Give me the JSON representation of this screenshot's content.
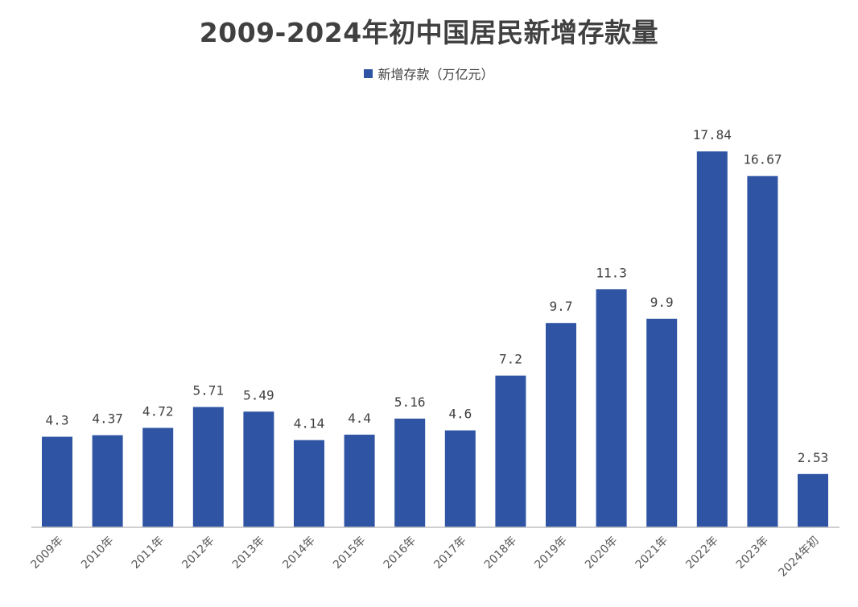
{
  "chart_data": {
    "type": "bar",
    "title": "2009-2024年初中国居民新增存款量",
    "legend": {
      "position": "top",
      "entries": [
        "新增存款（万亿元）"
      ]
    },
    "series": [
      {
        "name": "新增存款（万亿元）",
        "color": "#2E54A3",
        "values": [
          4.3,
          4.37,
          4.72,
          5.71,
          5.49,
          4.14,
          4.4,
          5.16,
          4.6,
          7.2,
          9.7,
          11.3,
          9.9,
          17.84,
          16.67,
          2.53
        ]
      }
    ],
    "categories": [
      "2009年",
      "2010年",
      "2011年",
      "2012年",
      "2013年",
      "2014年",
      "2015年",
      "2016年",
      "2017年",
      "2018年",
      "2019年",
      "2020年",
      "2021年",
      "2022年",
      "2023年",
      "2024年初"
    ],
    "data_labels": [
      "4.3",
      "4.37",
      "4.72",
      "5.71",
      "5.49",
      "4.14",
      "4.4",
      "5.16",
      "4.6",
      "7.2",
      "9.7",
      "11.3",
      "9.9",
      "17.84",
      "16.67",
      "2.53"
    ],
    "ylim": [
      0,
      20
    ],
    "grid": false
  }
}
